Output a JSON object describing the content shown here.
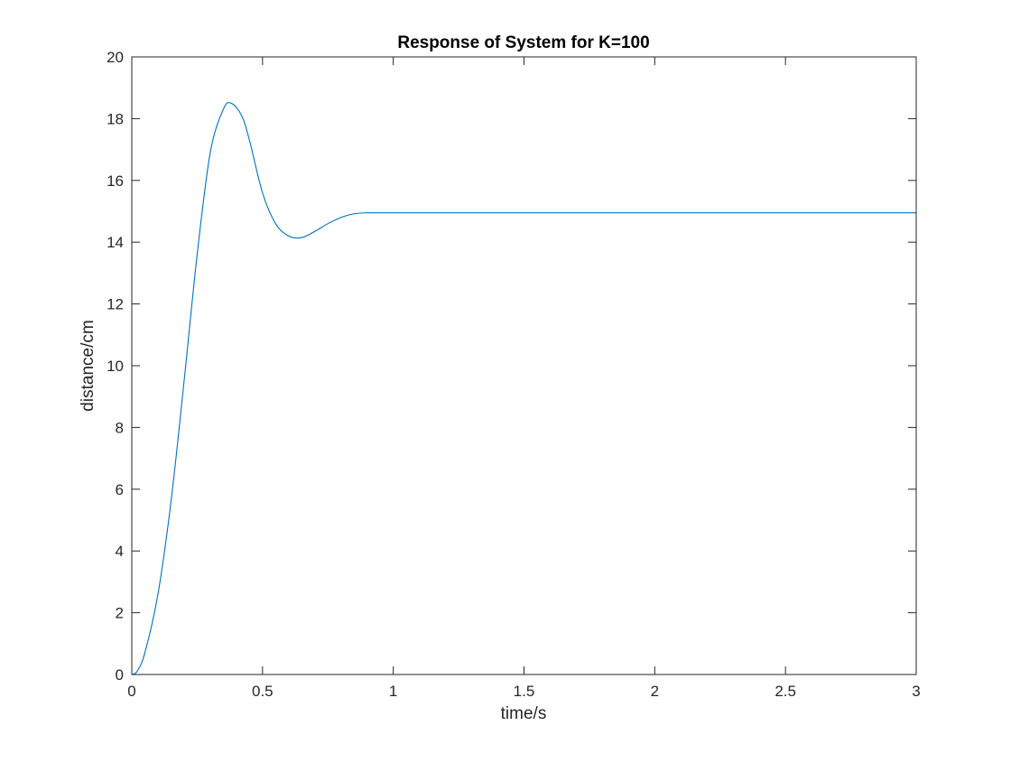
{
  "chart_data": {
    "type": "line",
    "title": "Response of System for K=100",
    "xlabel": "time/s",
    "ylabel": "distance/cm",
    "xlim": [
      0,
      3
    ],
    "ylim": [
      0,
      20
    ],
    "xticks": [
      0,
      0.5,
      1,
      1.5,
      2,
      2.5,
      3
    ],
    "xtick_labels": [
      "0",
      "0.5",
      "1",
      "1.5",
      "2",
      "2.5",
      "3"
    ],
    "yticks": [
      0,
      2,
      4,
      6,
      8,
      10,
      12,
      14,
      16,
      18,
      20
    ],
    "ytick_labels": [
      "0",
      "2",
      "4",
      "6",
      "8",
      "10",
      "12",
      "14",
      "16",
      "18",
      "20"
    ],
    "grid": false,
    "colors": {
      "line": "#0072bd",
      "axes": "#262626",
      "background": "#ffffff"
    },
    "series": [
      {
        "x": [
          0,
          0.02,
          0.05,
          0.1,
          0.15,
          0.2,
          0.25,
          0.3,
          0.35,
          0.38,
          0.42,
          0.45,
          0.5,
          0.55,
          0.6,
          0.65,
          0.7,
          0.75,
          0.8,
          0.85,
          0.9,
          1,
          1.5,
          2,
          2.5,
          3
        ],
        "y": [
          0,
          0.1,
          0.7,
          2.6,
          5.6,
          9.5,
          13.6,
          16.9,
          18.3,
          18.5,
          18.1,
          17.3,
          15.6,
          14.6,
          14.2,
          14.15,
          14.35,
          14.6,
          14.8,
          14.92,
          14.95,
          14.95,
          14.95,
          14.95,
          14.95,
          14.95
        ]
      }
    ]
  }
}
